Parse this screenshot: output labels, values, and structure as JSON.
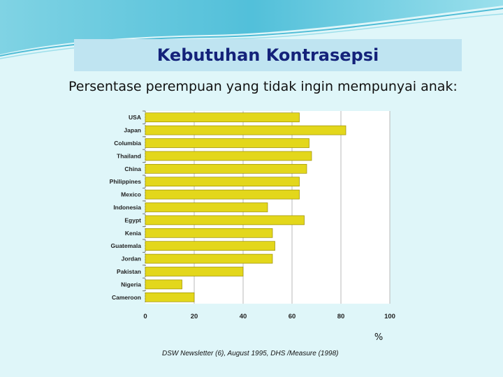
{
  "slide": {
    "title": "Kebutuhan Kontrasepsi",
    "subtitle": "Persentase perempuan yang tidak ingin mempunyai anak:",
    "source": "DSW Newsletter (6), August 1995, DHS /Measure (1998)"
  },
  "colors": {
    "bar_fill": "#e3d71b",
    "bar_stroke": "#9a8e00",
    "title_text": "#14227a",
    "title_bg": "#bfe4f1",
    "background": "#dff6f9"
  },
  "chart_data": {
    "type": "bar",
    "orientation": "horizontal",
    "categories": [
      "USA",
      "Japan",
      "Columbia",
      "Thailand",
      "China",
      "Philippines",
      "Mexico",
      "Indonesia",
      "Egypt",
      "Kenia",
      "Guatemala",
      "Jordan",
      "Pakistan",
      "Nigeria",
      "Cameroon"
    ],
    "values": [
      63,
      82,
      67,
      68,
      66,
      63,
      63,
      50,
      65,
      52,
      53,
      52,
      40,
      15,
      20
    ],
    "xticks": [
      0,
      20,
      40,
      60,
      80,
      100
    ],
    "xlim": [
      0,
      100
    ],
    "xlabel": "%",
    "grid": true
  }
}
